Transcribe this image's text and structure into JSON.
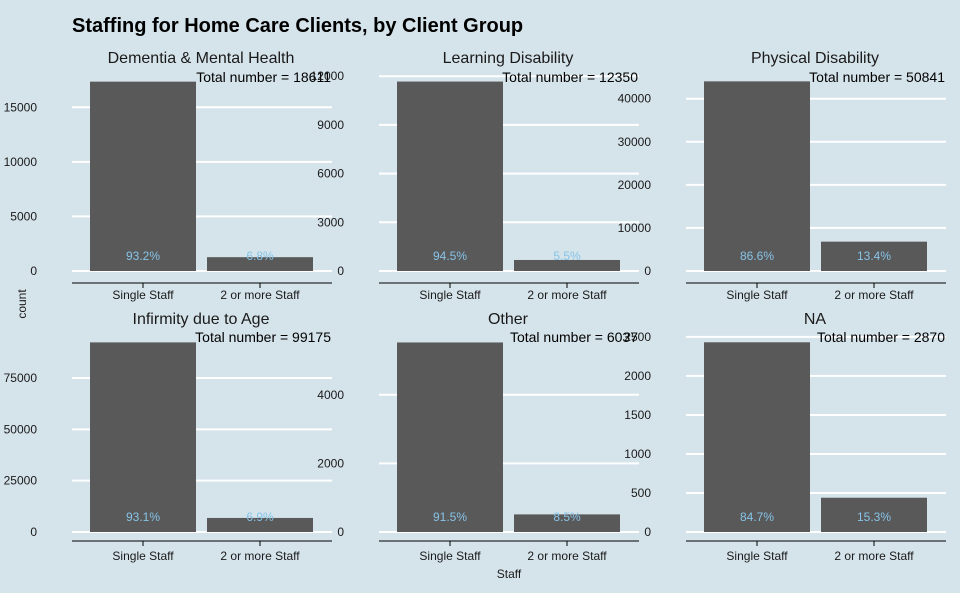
{
  "chart_data": {
    "type": "bar",
    "title": "Staffing for Home Care Clients, by Client Group",
    "xlabel": "Staff",
    "ylabel": "count",
    "categories": [
      "Single Staff",
      "2 or more Staff"
    ],
    "colors": {
      "background": "#d5e3ea",
      "bar": "#595959",
      "label": "#87c4e8",
      "grid": "#ffffff"
    },
    "grid": true,
    "facets": [
      {
        "name": "Dementia & Mental Health",
        "total_label": "Total number = 18611",
        "values": [
          17345,
          1266
        ],
        "pct_labels": [
          "93.2%",
          "6.8%"
        ],
        "yticks": [
          0,
          5000,
          10000,
          15000
        ],
        "ylim": [
          0,
          18230
        ]
      },
      {
        "name": "Learning Disability",
        "total_label": "Total number = 12350",
        "values": [
          11671,
          679
        ],
        "pct_labels": [
          "94.5%",
          "5.5%"
        ],
        "yticks": [
          0,
          3000,
          6000,
          9000,
          12000
        ],
        "ylim": [
          0,
          12260
        ]
      },
      {
        "name": "Physical Disability",
        "total_label": "Total number = 50841",
        "values": [
          44028,
          6813
        ],
        "pct_labels": [
          "86.6%",
          "13.4%"
        ],
        "yticks": [
          0,
          10000,
          20000,
          30000,
          40000
        ],
        "ylim": [
          0,
          46200
        ]
      },
      {
        "name": "Infirmity due to Age",
        "total_label": "Total number = 99175",
        "values": [
          92332,
          6843
        ],
        "pct_labels": [
          "93.1%",
          "6.9%"
        ],
        "yticks": [
          0,
          25000,
          50000,
          75000
        ],
        "ylim": [
          0,
          96900
        ]
      },
      {
        "name": "Other",
        "total_label": "Total number = 6037",
        "values": [
          5524,
          513
        ],
        "pct_labels": [
          "91.5%",
          "8.5%"
        ],
        "yticks": [
          0,
          2000,
          4000
        ],
        "ylim": [
          0,
          5800
        ]
      },
      {
        "name": "NA",
        "total_label": "Total number = 2870",
        "values": [
          2431,
          439
        ],
        "pct_labels": [
          "84.7%",
          "15.3%"
        ],
        "yticks": [
          0,
          500,
          1000,
          1500,
          2000,
          2500
        ],
        "ylim": [
          0,
          2550
        ]
      }
    ]
  }
}
